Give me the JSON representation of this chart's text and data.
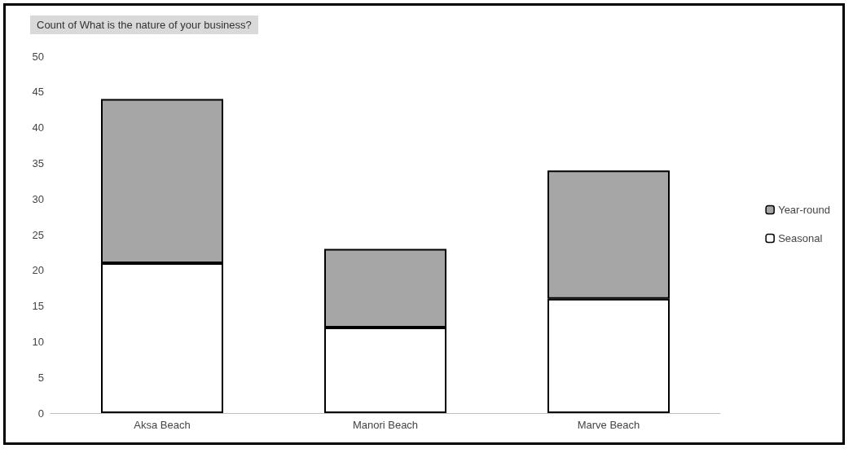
{
  "chart_data": {
    "type": "bar",
    "title": "Count of What is the nature of your business?",
    "categories": [
      "Aksa Beach",
      "Manori Beach",
      "Marve Beach"
    ],
    "stacked": true,
    "series": [
      {
        "name": "Seasonal",
        "color": "#ffffff",
        "values": [
          21,
          12,
          16
        ]
      },
      {
        "name": "Year-round",
        "color": "#a6a6a6",
        "values": [
          23,
          11,
          18
        ]
      }
    ],
    "ylim": [
      0,
      50
    ],
    "yticks": [
      0,
      5,
      10,
      15,
      20,
      25,
      30,
      35,
      40,
      45,
      50
    ],
    "grid": false,
    "legend": "right"
  }
}
